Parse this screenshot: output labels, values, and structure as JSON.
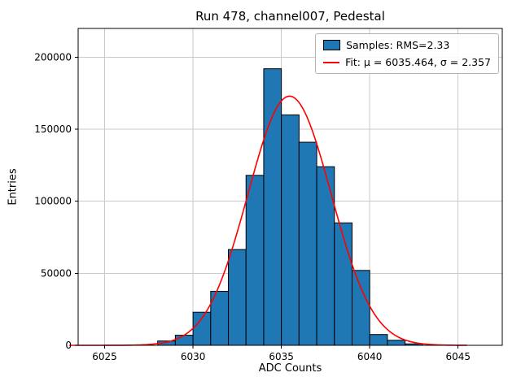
{
  "chart_data": {
    "type": "bar",
    "subtype": "histogram-with-gaussian-fit",
    "title": "Run 478, channel007, Pedestal",
    "xlabel": "ADC Counts",
    "ylabel": "Entries",
    "xlim": [
      6023.5,
      6047.5
    ],
    "ylim": [
      0,
      220000
    ],
    "x_ticks": [
      6025,
      6030,
      6035,
      6040,
      6045
    ],
    "y_ticks": [
      0,
      50000,
      100000,
      150000,
      200000
    ],
    "grid": true,
    "legend_position": "upper right",
    "bin_width": 1,
    "bins": [
      6028,
      6029,
      6030,
      6031,
      6032,
      6033,
      6034,
      6035,
      6036,
      6037,
      6038,
      6039,
      6040,
      6041,
      6042
    ],
    "counts": [
      3000,
      7000,
      23000,
      37500,
      66500,
      118000,
      192000,
      160000,
      141000,
      124000,
      85000,
      52000,
      7500,
      3500,
      1000
    ],
    "fit": {
      "type": "gaussian",
      "mu": 6035.464,
      "sigma": 2.357,
      "amplitude": 173000,
      "x_start": 6023.0,
      "x_end": 6045.5
    },
    "legend": [
      {
        "label": "Samples: RMS=2.33",
        "swatch": "bar"
      },
      {
        "label": "Fit: μ = 6035.464, σ = 2.357",
        "swatch": "line"
      }
    ],
    "colors": {
      "bar": "#1f77b4",
      "bar_edge": "#000000",
      "fit": "#ff0000",
      "grid": "#c9c9c9",
      "frame": "#000000"
    }
  }
}
